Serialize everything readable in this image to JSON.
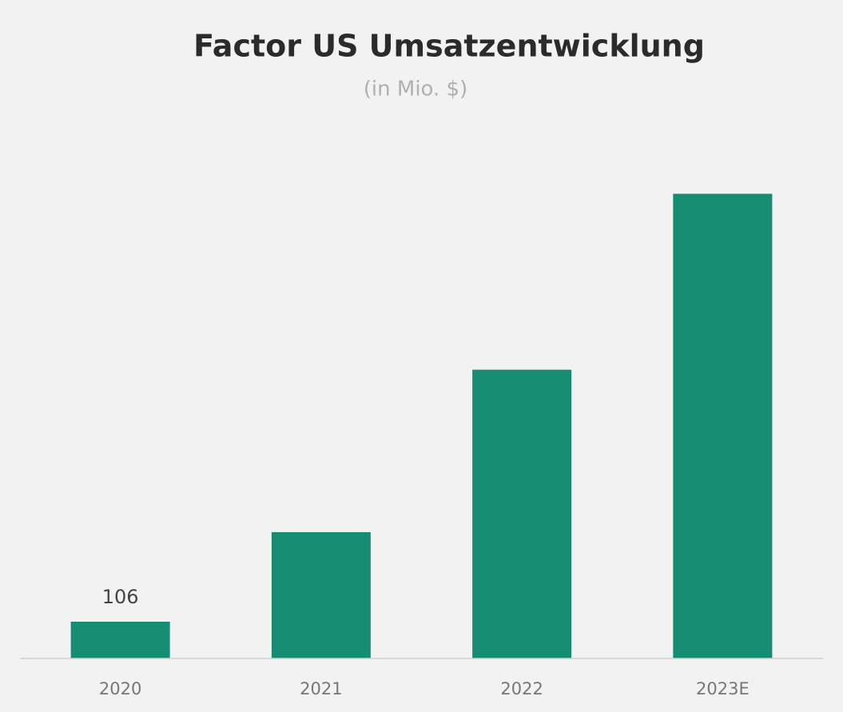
{
  "chart_data": {
    "type": "bar",
    "title": "Factor US Umsatzentwicklung",
    "subtitle": "(in Mio. $)",
    "categories": [
      "2020",
      "2021",
      "2022",
      "2023E"
    ],
    "values": [
      106,
      364,
      832,
      1339
    ],
    "value_labels": [
      "106",
      null,
      null,
      null
    ],
    "color": "#168c73",
    "ylim": [
      0,
      1400
    ]
  }
}
